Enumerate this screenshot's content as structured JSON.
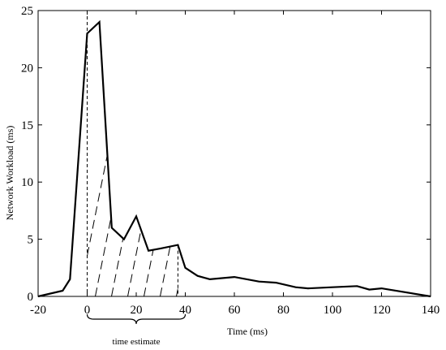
{
  "chart_data": {
    "type": "line",
    "xlabel": "Time (ms)",
    "ylabel": "Network Workload (ms)",
    "xlim": [
      -20,
      140
    ],
    "ylim": [
      0,
      25
    ],
    "x_ticks": [
      -20,
      0,
      20,
      40,
      60,
      80,
      100,
      120,
      140
    ],
    "y_ticks": [
      0,
      5,
      10,
      15,
      20,
      25
    ],
    "grid": false,
    "series": [
      {
        "x": [
          -20,
          -10,
          -7,
          0,
          5,
          10,
          15,
          20,
          25,
          30,
          37,
          40,
          45,
          50,
          60,
          70,
          77,
          85,
          90,
          100,
          110,
          115,
          120,
          140
        ],
        "y": [
          0,
          0.5,
          1.5,
          23,
          24,
          6,
          5,
          7,
          4,
          4.2,
          4.5,
          2.5,
          1.8,
          1.5,
          1.7,
          1.3,
          1.2,
          0.8,
          0.7,
          0.8,
          0.9,
          0.6,
          0.7,
          0
        ]
      }
    ],
    "annotations": {
      "time_estimate_label": "time estimate",
      "time_estimate_range": [
        0,
        40
      ],
      "shaded_region": [
        0,
        37
      ]
    }
  }
}
